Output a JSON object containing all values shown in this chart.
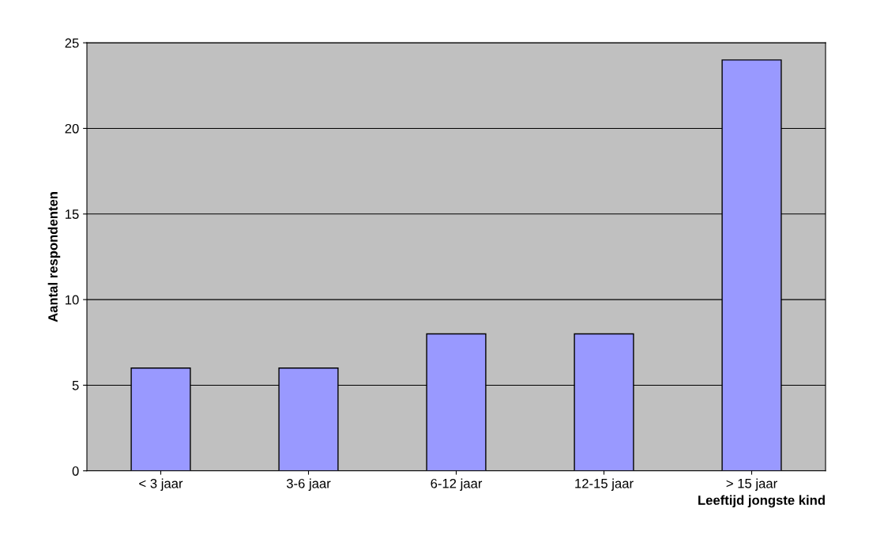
{
  "chart_data": {
    "type": "bar",
    "categories": [
      "< 3 jaar",
      "3-6 jaar",
      "6-12 jaar",
      "12-15 jaar",
      "> 15 jaar"
    ],
    "values": [
      6,
      6,
      8,
      8,
      24
    ],
    "color": "#9999ff",
    "xlabel": "Leeftijd jongste kind",
    "ylabel": "Aantal respondenten",
    "ylim": [
      0,
      25
    ],
    "yticks": [
      0,
      5,
      10,
      15,
      20,
      25
    ],
    "grid": "y"
  }
}
